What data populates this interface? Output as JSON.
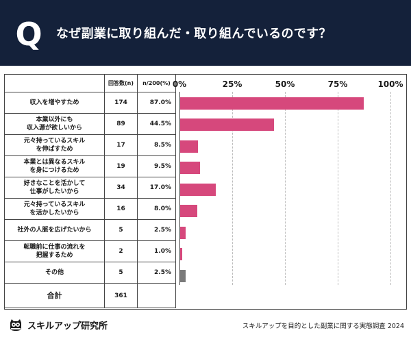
{
  "header": {
    "q_mark": "Q",
    "question": "なぜ副業に取り組んだ・取り組んでいるのです？"
  },
  "table": {
    "col_count": "回答数(n)",
    "col_pct": "n/200(%)",
    "rows": [
      {
        "label1": "収入を増やすため",
        "label2": "",
        "count": "174",
        "pct": "87.0%"
      },
      {
        "label1": "本業以外にも",
        "label2": "収入源が欲しいから",
        "count": "89",
        "pct": "44.5%"
      },
      {
        "label1": "元々持っているスキル",
        "label2": "を伸ばすため",
        "count": "17",
        "pct": "8.5%"
      },
      {
        "label1": "本業とは異なるスキル",
        "label2": "を身につけるため",
        "count": "19",
        "pct": "9.5%"
      },
      {
        "label1": "好きなことを活かして",
        "label2": "仕事がしたいから",
        "count": "34",
        "pct": "17.0%"
      },
      {
        "label1": "元々持っているスキル",
        "label2": "を活かしたいから",
        "count": "16",
        "pct": "8.0%"
      },
      {
        "label1": "社外の人脈を広げたいから",
        "label2": "",
        "count": "5",
        "pct": "2.5%"
      },
      {
        "label1": "転職前に仕事の流れを",
        "label2": "把握するため",
        "count": "2",
        "pct": "1.0%"
      },
      {
        "label1": "その他",
        "label2": "",
        "count": "5",
        "pct": "2.5%"
      }
    ],
    "total_label": "合計",
    "total_count": "361"
  },
  "chart_data": {
    "type": "bar",
    "orientation": "horizontal",
    "title": "なぜ副業に取り組んだ・取り組んでいるのです？",
    "categories": [
      "収入を増やすため",
      "本業以外にも収入源が欲しいから",
      "元々持っているスキルを伸ばすため",
      "本業とは異なるスキルを身につけるため",
      "好きなことを活かして仕事がしたいから",
      "元々持っているスキルを活かしたいから",
      "社外の人脈を広げたいから",
      "転職前に仕事の流れを把握するため",
      "その他"
    ],
    "values": [
      87.0,
      44.5,
      8.5,
      9.5,
      17.0,
      8.0,
      2.5,
      1.0,
      2.5
    ],
    "xlim": [
      0,
      100
    ],
    "ticks": [
      0,
      25,
      50,
      75,
      100
    ],
    "tick_labels": [
      "0%",
      "25%",
      "50%",
      "75%",
      "100%"
    ],
    "grid": true,
    "bar_color": "#d6487c",
    "other_color": "#7a7a7a"
  },
  "footer": {
    "brand": "スキルアップ研究所",
    "note": "スキルアップを目的とした副業に関する実態調査 2024"
  }
}
